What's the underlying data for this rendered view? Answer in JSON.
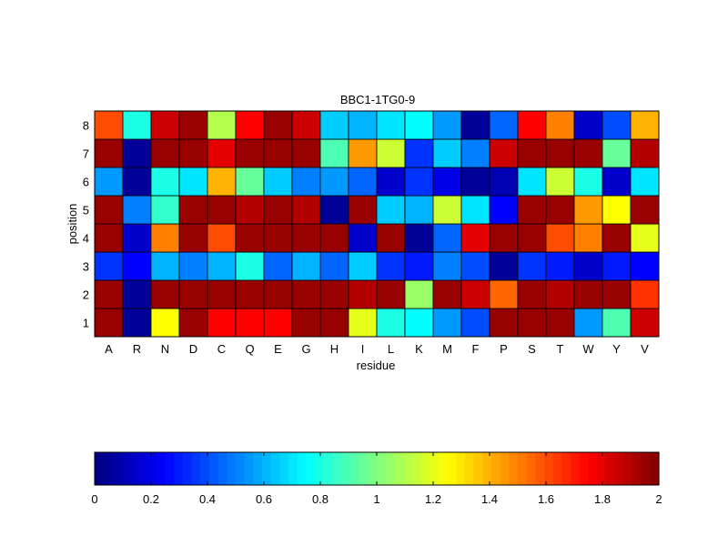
{
  "chart_data": {
    "type": "heatmap",
    "title": "BBC1-1TG0-9",
    "xlabel": "residue",
    "ylabel": "position",
    "x_categories": [
      "A",
      "R",
      "N",
      "D",
      "C",
      "Q",
      "E",
      "G",
      "H",
      "I",
      "L",
      "K",
      "M",
      "F",
      "P",
      "S",
      "T",
      "W",
      "Y",
      "V"
    ],
    "y_categories": [
      "1",
      "2",
      "3",
      "4",
      "5",
      "6",
      "7",
      "8"
    ],
    "values": [
      [
        1.95,
        0.05,
        1.25,
        1.95,
        1.75,
        1.75,
        1.75,
        1.95,
        1.95,
        1.2,
        0.8,
        0.75,
        0.55,
        0.4,
        1.95,
        1.95,
        1.95,
        0.55,
        0.9,
        1.85
      ],
      [
        1.95,
        0.05,
        1.95,
        1.95,
        1.95,
        1.95,
        1.95,
        1.95,
        1.95,
        1.9,
        1.95,
        1.05,
        1.95,
        1.85,
        1.55,
        1.95,
        1.9,
        1.95,
        1.95,
        1.65
      ],
      [
        0.35,
        0.25,
        0.6,
        0.5,
        0.6,
        0.8,
        0.45,
        0.6,
        0.45,
        0.65,
        0.35,
        0.3,
        0.5,
        0.4,
        0.05,
        0.35,
        0.3,
        0.15,
        0.3,
        0.25
      ],
      [
        1.95,
        0.15,
        1.5,
        1.95,
        1.6,
        1.95,
        1.95,
        1.95,
        1.95,
        0.15,
        1.95,
        0.05,
        0.45,
        1.8,
        1.95,
        1.95,
        1.6,
        1.5,
        1.95,
        1.2
      ],
      [
        1.95,
        0.5,
        0.85,
        1.95,
        1.95,
        1.9,
        1.95,
        1.9,
        0.05,
        1.95,
        0.65,
        0.6,
        1.15,
        0.7,
        0.25,
        1.95,
        1.95,
        1.45,
        1.25,
        1.95
      ],
      [
        0.55,
        0.05,
        0.8,
        0.7,
        1.4,
        0.95,
        0.65,
        0.5,
        0.55,
        0.45,
        0.15,
        0.35,
        0.2,
        0.05,
        0.1,
        0.7,
        1.15,
        0.8,
        0.15,
        0.7
      ],
      [
        1.95,
        0.05,
        1.95,
        1.95,
        1.8,
        1.95,
        1.95,
        1.95,
        0.9,
        1.45,
        1.15,
        0.35,
        0.65,
        0.5,
        1.85,
        1.95,
        1.95,
        1.95,
        0.95,
        1.9
      ],
      [
        1.6,
        0.8,
        1.85,
        1.95,
        1.1,
        1.75,
        1.95,
        1.85,
        0.65,
        0.6,
        0.7,
        0.75,
        0.55,
        0.05,
        0.45,
        1.75,
        1.5,
        0.15,
        0.4,
        1.4
      ]
    ],
    "colorbar": {
      "min": 0,
      "max": 2,
      "tick_labels": [
        "0",
        "0.2",
        "0.4",
        "0.6",
        "0.8",
        "1",
        "1.2",
        "1.4",
        "1.6",
        "1.8",
        "2"
      ],
      "colormap": "jet"
    },
    "grid": true,
    "legend": "colorbar-bottom"
  }
}
